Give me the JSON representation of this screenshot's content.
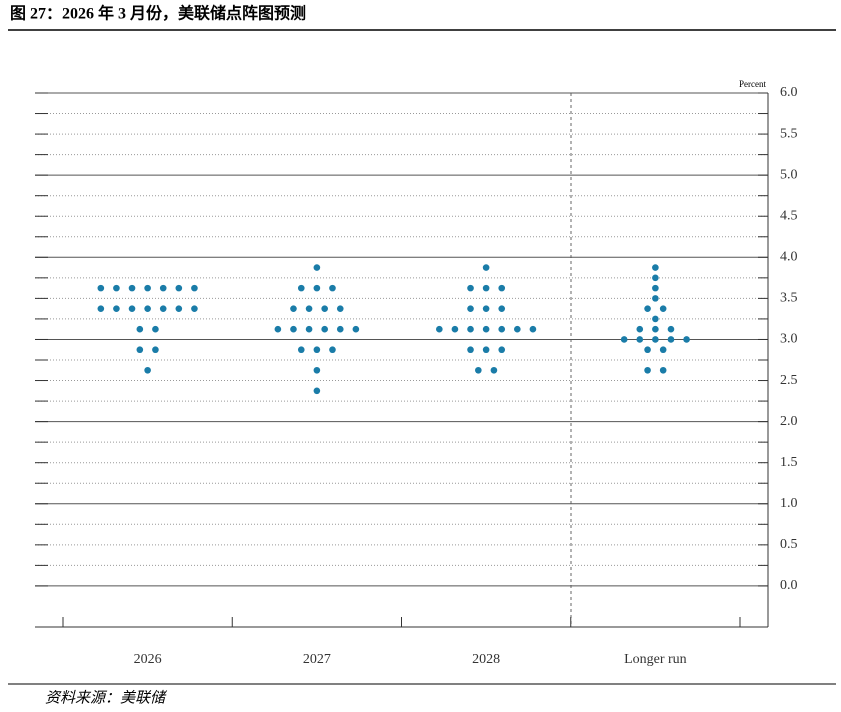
{
  "header": {
    "title": "图 27：2026 年 3 月份，美联储点阵图预测"
  },
  "chart_data": {
    "type": "dot",
    "y_label": "Percent",
    "categories": [
      "2026",
      "2027",
      "2028",
      "Longer run"
    ],
    "values": [
      [
        3.625,
        3.625,
        3.625,
        3.625,
        3.625,
        3.625,
        3.625,
        3.375,
        3.375,
        3.375,
        3.375,
        3.375,
        3.375,
        3.375,
        3.125,
        3.125,
        2.875,
        2.875,
        2.625
      ],
      [
        3.875,
        3.625,
        3.625,
        3.625,
        3.375,
        3.375,
        3.375,
        3.375,
        3.125,
        3.125,
        3.125,
        3.125,
        3.125,
        3.125,
        2.875,
        2.875,
        2.875,
        2.625,
        2.375
      ],
      [
        3.875,
        3.625,
        3.625,
        3.625,
        3.375,
        3.375,
        3.375,
        3.125,
        3.125,
        3.125,
        3.125,
        3.125,
        3.125,
        3.125,
        2.875,
        2.875,
        2.875,
        2.625,
        2.625
      ],
      [
        3.875,
        3.75,
        3.625,
        3.5,
        3.375,
        3.375,
        3.25,
        3.125,
        3.125,
        3.125,
        3,
        3,
        3,
        3,
        3,
        2.875,
        2.875,
        2.625,
        2.625
      ]
    ],
    "color": "#1a7ca8",
    "ylim": [
      -0.5,
      6
    ],
    "yticks": [
      {
        "value": 0,
        "label": "0.0"
      },
      0.5,
      {
        "value": 1,
        "label": "1.0"
      },
      1.5,
      {
        "value": 2,
        "label": "2.0"
      },
      2.5,
      {
        "value": 3,
        "label": "3.0"
      },
      3.5,
      {
        "value": 4,
        "label": "4.0"
      },
      4.5,
      {
        "value": 5,
        "label": "5.0"
      },
      5.5,
      {
        "value": 6,
        "label": "6.0"
      }
    ],
    "grid": true
  },
  "footer": {
    "source": "资料来源：美联储"
  }
}
